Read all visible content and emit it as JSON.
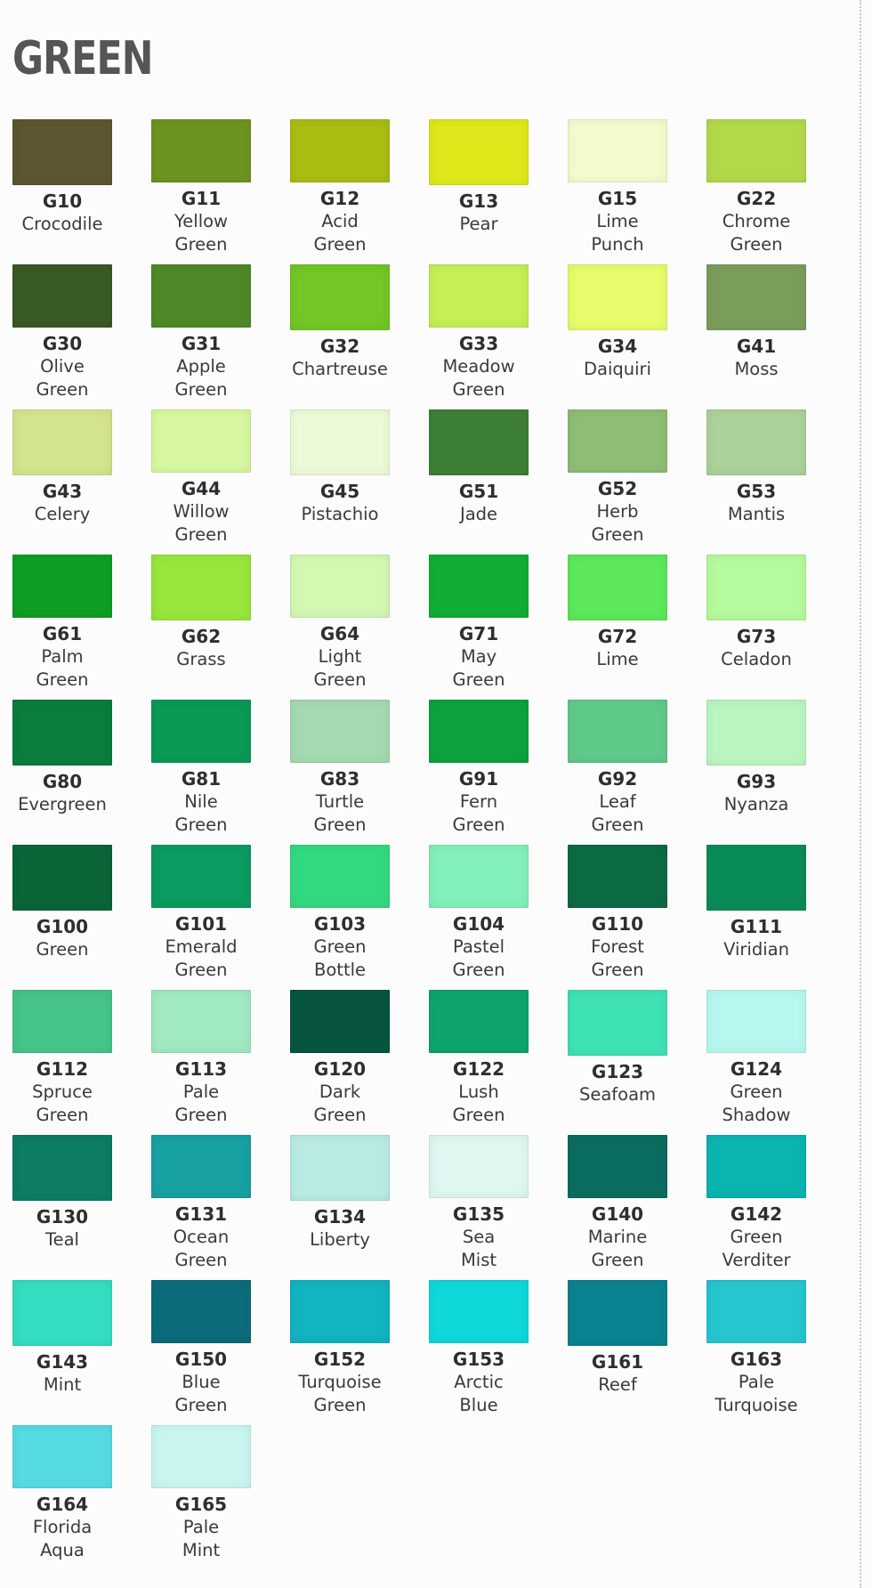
{
  "title": "GREEN",
  "swatches": [
    {
      "code": "G10",
      "name": "Crocodile",
      "color": "#5e5630"
    },
    {
      "code": "G11",
      "name": "Yellow\nGreen",
      "color": "#6d9421"
    },
    {
      "code": "G12",
      "name": "Acid\nGreen",
      "color": "#a9bd13"
    },
    {
      "code": "G13",
      "name": "Pear",
      "color": "#dfe81b"
    },
    {
      "code": "G15",
      "name": "Lime\nPunch",
      "color": "#f4fbcd"
    },
    {
      "code": "G22",
      "name": "Chrome\nGreen",
      "color": "#b2d94a"
    },
    {
      "code": "G30",
      "name": "Olive\nGreen",
      "color": "#3a5a23"
    },
    {
      "code": "G31",
      "name": "Apple\nGreen",
      "color": "#4d8a27"
    },
    {
      "code": "G32",
      "name": "Chartreuse",
      "color": "#73c626"
    },
    {
      "code": "G33",
      "name": "Meadow\nGreen",
      "color": "#c5ef55"
    },
    {
      "code": "G34",
      "name": "Daiquiri",
      "color": "#e8fb6a"
    },
    {
      "code": "G41",
      "name": "Moss",
      "color": "#7b9d5c"
    },
    {
      "code": "G43",
      "name": "Celery",
      "color": "#d3e48f"
    },
    {
      "code": "G44",
      "name": "Willow\nGreen",
      "color": "#d7f7a0"
    },
    {
      "code": "G45",
      "name": "Pistachio",
      "color": "#ecfad8"
    },
    {
      "code": "G51",
      "name": "Jade",
      "color": "#3e7f36"
    },
    {
      "code": "G52",
      "name": "Herb\nGreen",
      "color": "#8ebd75"
    },
    {
      "code": "G53",
      "name": "Mantis",
      "color": "#acd199"
    },
    {
      "code": "G61",
      "name": "Palm\nGreen",
      "color": "#0f9e23"
    },
    {
      "code": "G62",
      "name": "Grass",
      "color": "#97e63c"
    },
    {
      "code": "G64",
      "name": "Light\nGreen",
      "color": "#d2f8b2"
    },
    {
      "code": "G71",
      "name": "May\nGreen",
      "color": "#11ae34"
    },
    {
      "code": "G72",
      "name": "Lime",
      "color": "#5ce85a"
    },
    {
      "code": "G73",
      "name": "Celadon",
      "color": "#b5fa9c"
    },
    {
      "code": "G80",
      "name": "Evergreen",
      "color": "#0a7e3c"
    },
    {
      "code": "G81",
      "name": "Nile\nGreen",
      "color": "#0a9a55"
    },
    {
      "code": "G83",
      "name": "Turtle\nGreen",
      "color": "#a4d9b1"
    },
    {
      "code": "G91",
      "name": "Fern\nGreen",
      "color": "#0ea23f"
    },
    {
      "code": "G92",
      "name": "Leaf\nGreen",
      "color": "#5fc98a"
    },
    {
      "code": "G93",
      "name": "Nyanza",
      "color": "#b9f6bf"
    },
    {
      "code": "G100",
      "name": "Green",
      "color": "#0a6537"
    },
    {
      "code": "G101",
      "name": "Emerald\nGreen",
      "color": "#0c9b61"
    },
    {
      "code": "G103",
      "name": "Green\nBottle",
      "color": "#33d980"
    },
    {
      "code": "G104",
      "name": "Pastel\nGreen",
      "color": "#84f0b9"
    },
    {
      "code": "G110",
      "name": "Forest\nGreen",
      "color": "#0c6b43"
    },
    {
      "code": "G111",
      "name": "Viridian",
      "color": "#0a8c58"
    },
    {
      "code": "G112",
      "name": "Spruce\nGreen",
      "color": "#45c588"
    },
    {
      "code": "G113",
      "name": "Pale\nGreen",
      "color": "#a1e9c1"
    },
    {
      "code": "G120",
      "name": "Dark\nGreen",
      "color": "#075540"
    },
    {
      "code": "G122",
      "name": "Lush\nGreen",
      "color": "#0da56c"
    },
    {
      "code": "G123",
      "name": "Seafoam",
      "color": "#3fe2b4"
    },
    {
      "code": "G124",
      "name": "Green\nShadow",
      "color": "#b6f8ef"
    },
    {
      "code": "G130",
      "name": "Teal",
      "color": "#0c7c64"
    },
    {
      "code": "G131",
      "name": "Ocean\nGreen",
      "color": "#17a1a2"
    },
    {
      "code": "G134",
      "name": "Liberty",
      "color": "#b8ebe3"
    },
    {
      "code": "G135",
      "name": "Sea\nMist",
      "color": "#e0f6f1"
    },
    {
      "code": "G140",
      "name": "Marine\nGreen",
      "color": "#0b6d60"
    },
    {
      "code": "G142",
      "name": "Green\nVerditer",
      "color": "#0ab5b0"
    },
    {
      "code": "G143",
      "name": "Mint",
      "color": "#35ddc0"
    },
    {
      "code": "G150",
      "name": "Blue\nGreen",
      "color": "#0c6c7b"
    },
    {
      "code": "G152",
      "name": "Turquoise\nGreen",
      "color": "#12b4c0"
    },
    {
      "code": "G153",
      "name": "Arctic\nBlue",
      "color": "#0ed8da"
    },
    {
      "code": "G161",
      "name": "Reef",
      "color": "#0b8290"
    },
    {
      "code": "G163",
      "name": "Pale\nTurquoise",
      "color": "#26c6cf"
    },
    {
      "code": "G164",
      "name": "Florida\nAqua",
      "color": "#57dbe3"
    },
    {
      "code": "G165",
      "name": "Pale\nMint",
      "color": "#c8f6ef"
    }
  ]
}
